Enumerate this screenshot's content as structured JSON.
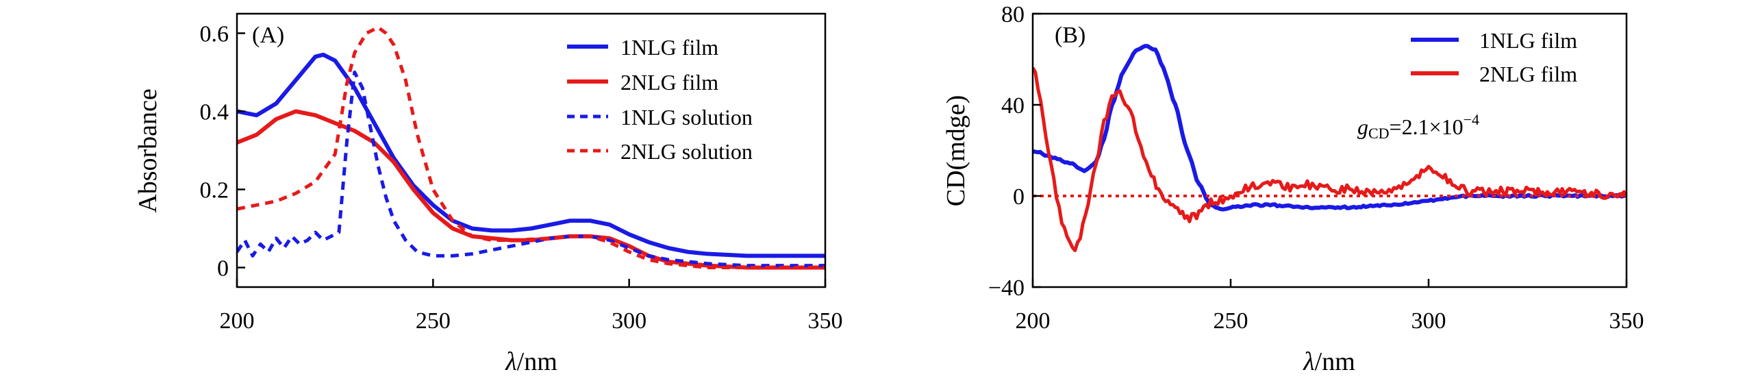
{
  "chart_data": [
    {
      "type": "line",
      "panel_label": "(A)",
      "xlabel_var": "λ",
      "xlabel_unit": "/nm",
      "ylabel": "Absorbance",
      "xlim": [
        200,
        350
      ],
      "ylim": [
        -0.05,
        0.65
      ],
      "xticks": [
        200,
        250,
        300,
        350
      ],
      "yticks": [
        0,
        0.2,
        0.4,
        0.6
      ],
      "ytick_labels": [
        "0",
        "0.2",
        "0.4",
        "0.6"
      ],
      "legend_position": "top-right",
      "series": [
        {
          "name": "1NLG film",
          "color": "#1a1ae6",
          "style": "solid",
          "x": [
            200,
            205,
            210,
            215,
            220,
            222,
            225,
            230,
            235,
            240,
            245,
            250,
            255,
            260,
            265,
            270,
            275,
            280,
            285,
            290,
            295,
            300,
            305,
            310,
            315,
            320,
            330,
            340,
            350
          ],
          "y": [
            0.4,
            0.39,
            0.42,
            0.48,
            0.54,
            0.545,
            0.53,
            0.46,
            0.37,
            0.28,
            0.21,
            0.16,
            0.12,
            0.1,
            0.095,
            0.095,
            0.1,
            0.11,
            0.12,
            0.12,
            0.11,
            0.085,
            0.065,
            0.05,
            0.04,
            0.035,
            0.03,
            0.03,
            0.03
          ]
        },
        {
          "name": "2NLG film",
          "color": "#e61a1a",
          "style": "solid",
          "x": [
            200,
            205,
            210,
            215,
            220,
            225,
            230,
            235,
            240,
            245,
            250,
            255,
            260,
            265,
            270,
            275,
            280,
            285,
            290,
            295,
            300,
            305,
            310,
            320,
            330,
            340,
            350
          ],
          "y": [
            0.32,
            0.34,
            0.38,
            0.4,
            0.39,
            0.37,
            0.35,
            0.32,
            0.27,
            0.2,
            0.14,
            0.1,
            0.08,
            0.075,
            0.07,
            0.07,
            0.075,
            0.08,
            0.08,
            0.075,
            0.055,
            0.03,
            0.015,
            0.005,
            0.0,
            0.0,
            0.0
          ]
        },
        {
          "name": "1NLG solution",
          "color": "#1a1ae6",
          "style": "dashed",
          "x": [
            200,
            202,
            204,
            206,
            208,
            210,
            212,
            214,
            216,
            218,
            220,
            222,
            224,
            226,
            228,
            230,
            232,
            234,
            236,
            238,
            240,
            243,
            246,
            250,
            255,
            260,
            265,
            270,
            275,
            280,
            285,
            290,
            295,
            300,
            305,
            310,
            320,
            330,
            340,
            350
          ],
          "y": [
            0.04,
            0.07,
            0.03,
            0.06,
            0.04,
            0.075,
            0.05,
            0.08,
            0.06,
            0.07,
            0.09,
            0.07,
            0.08,
            0.09,
            0.32,
            0.5,
            0.46,
            0.36,
            0.26,
            0.18,
            0.12,
            0.07,
            0.04,
            0.03,
            0.03,
            0.035,
            0.045,
            0.055,
            0.065,
            0.075,
            0.08,
            0.08,
            0.07,
            0.05,
            0.03,
            0.02,
            0.01,
            0.005,
            0.005,
            0.005
          ]
        },
        {
          "name": "2NLG solution",
          "color": "#e61a1a",
          "style": "dashed",
          "x": [
            200,
            205,
            210,
            215,
            220,
            225,
            228,
            230,
            233,
            236,
            238,
            240,
            243,
            246,
            250,
            255,
            260,
            265,
            270,
            280,
            285,
            290,
            295,
            300,
            305,
            310,
            320,
            330,
            340,
            350
          ],
          "y": [
            0.15,
            0.16,
            0.17,
            0.19,
            0.22,
            0.29,
            0.47,
            0.55,
            0.6,
            0.615,
            0.6,
            0.57,
            0.48,
            0.34,
            0.2,
            0.12,
            0.08,
            0.07,
            0.07,
            0.075,
            0.08,
            0.08,
            0.065,
            0.04,
            0.02,
            0.01,
            0.0,
            0.0,
            0.0,
            0.0
          ]
        }
      ]
    },
    {
      "type": "line",
      "panel_label": "(B)",
      "xlabel_var": "λ",
      "xlabel_unit": "/nm",
      "ylabel": "CD(mdge)",
      "xlim": [
        200,
        350
      ],
      "ylim": [
        -40,
        80
      ],
      "xticks": [
        200,
        250,
        300,
        350
      ],
      "yticks": [
        -40,
        0,
        40,
        80
      ],
      "ytick_labels": [
        "−40",
        "0",
        "40",
        "80"
      ],
      "legend_position": "top-right",
      "annotation": {
        "var": "g",
        "sub": "CD",
        "value": "=2.1×10",
        "exponent": "−4",
        "at": [
          282,
          27
        ]
      },
      "series": [
        {
          "name": "1NLG film",
          "color": "#1a1ae6",
          "style": "solid",
          "x": [
            200,
            205,
            210,
            213,
            216,
            218,
            220,
            223,
            226,
            229,
            231,
            233,
            236,
            239,
            242,
            245,
            248,
            250,
            255,
            260,
            270,
            280,
            290,
            300,
            310,
            320,
            330,
            340,
            350
          ],
          "y": [
            20,
            17,
            14,
            11,
            15,
            25,
            40,
            55,
            64,
            66,
            64,
            56,
            40,
            20,
            5,
            -4,
            -6,
            -5,
            -4,
            -4,
            -5,
            -5,
            -4,
            -2,
            0,
            0,
            0,
            0,
            0
          ],
          "noise": 0.4
        },
        {
          "name": "2NLG film",
          "color": "#e61a1a",
          "style": "solid",
          "x": [
            200,
            202,
            204,
            206,
            208,
            210,
            212,
            214,
            216,
            218,
            220,
            222,
            224,
            226,
            228,
            230,
            233,
            236,
            239,
            242,
            245,
            248,
            250,
            255,
            260,
            265,
            270,
            275,
            280,
            285,
            290,
            295,
            297,
            300,
            303,
            306,
            310,
            320,
            330,
            335,
            340,
            350
          ],
          "y": [
            58,
            42,
            20,
            0,
            -15,
            -24,
            -18,
            -2,
            15,
            32,
            44,
            45,
            40,
            30,
            18,
            8,
            0,
            -6,
            -10,
            -8,
            -3,
            -2,
            0,
            4,
            5,
            4,
            5,
            3,
            3,
            2,
            3,
            5,
            9,
            13,
            10,
            5,
            2,
            2,
            2,
            2,
            1,
            0
          ],
          "noise": 1.8
        },
        {
          "name": "zero",
          "color": "#e61a1a",
          "style": "dotted",
          "legend": false,
          "x": [
            200,
            350
          ],
          "y": [
            0,
            0
          ]
        }
      ]
    }
  ]
}
